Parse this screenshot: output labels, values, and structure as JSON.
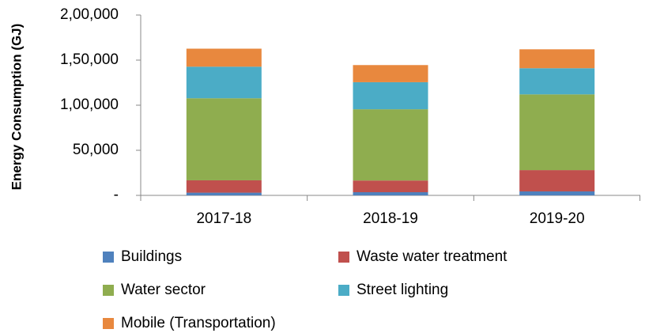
{
  "chart_data": {
    "type": "stacked_bar",
    "y_label": "Energy Consumption (GJ)",
    "categories": [
      "2017-18",
      "2018-19",
      "2019-20"
    ],
    "series": [
      {
        "name": "Buildings",
        "color": "#4f81bd",
        "values": [
          3000,
          3500,
          4400
        ]
      },
      {
        "name": "Waste water treatment",
        "color": "#c0504d",
        "values": [
          13700,
          13000,
          23600
        ]
      },
      {
        "name": "Water sector",
        "color": "#8fad4f",
        "values": [
          91000,
          79000,
          84000
        ]
      },
      {
        "name": "Street lighting",
        "color": "#4bacc6",
        "values": [
          35000,
          30000,
          29000
        ]
      },
      {
        "name": "Mobile (Transportation)",
        "color": "#e8883e",
        "values": [
          20000,
          19000,
          21000
        ]
      }
    ],
    "ylim": [
      0,
      200000
    ],
    "yticks": [
      {
        "value": 0,
        "label": "-"
      },
      {
        "value": 50000,
        "label": "50,000"
      },
      {
        "value": 100000,
        "label": "1,00,000"
      },
      {
        "value": 150000,
        "label": "1,50,000"
      },
      {
        "value": 200000,
        "label": "2,00,000"
      }
    ],
    "legend": "bottom"
  }
}
